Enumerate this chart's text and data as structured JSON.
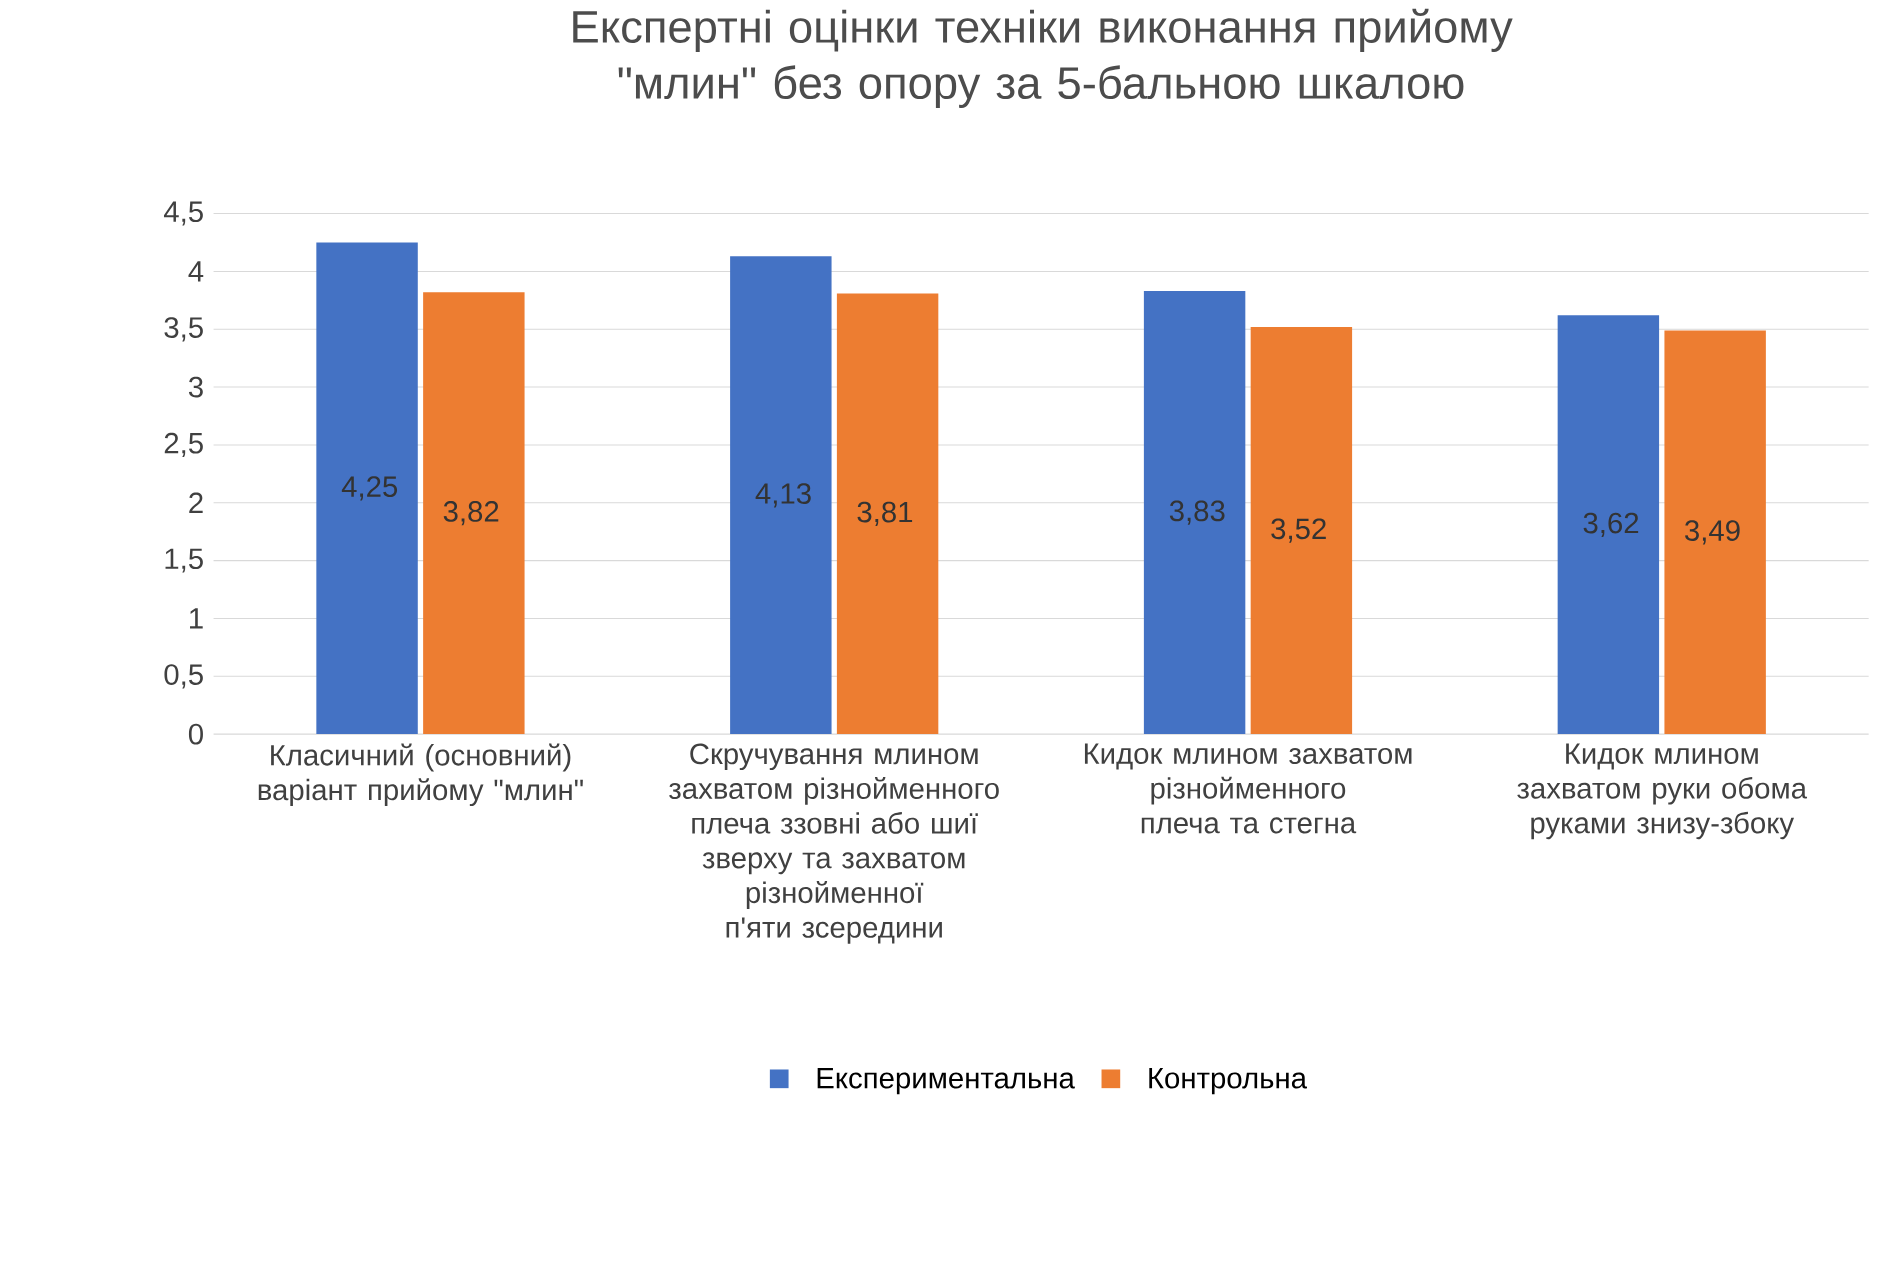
{
  "chart_data": {
    "type": "bar",
    "title": "Експертні оцінки техніки виконання прийому \"млин\" без опору за 5-бальною шкалою",
    "categories": [
      "Класичний (основний) варіант прийому \"млин\"",
      "Скручування млином захватом різнойменного плеча ззовні або шиї зверху та захватом різнойменної п'яти зсередини",
      "Кидок млином захватом різнойменного плеча та стегна",
      "Кидок млином захватом руки обома руками знизу-збоку"
    ],
    "series": [
      {
        "name": "Експериментальна",
        "color": "#4472c4",
        "values": [
          4.25,
          4.13,
          3.83,
          3.62
        ],
        "value_labels": [
          "4,25",
          "4,13",
          "3,83",
          "3,62"
        ]
      },
      {
        "name": "Контрольна",
        "color": "#ed7d31",
        "values": [
          3.82,
          3.81,
          3.52,
          3.49
        ],
        "value_labels": [
          "3,82",
          "3,81",
          "3,52",
          "3,49"
        ]
      }
    ],
    "ylim": [
      0,
      4.5
    ],
    "yticks": [
      {
        "value": 0,
        "label": "0"
      },
      {
        "value": 0.5,
        "label": "0,5"
      },
      {
        "value": 1,
        "label": "1"
      },
      {
        "value": 1.5,
        "label": "1,5"
      },
      {
        "value": 2,
        "label": "2"
      },
      {
        "value": 2.5,
        "label": "2,5"
      },
      {
        "value": 3,
        "label": "3"
      },
      {
        "value": 3.5,
        "label": "3,5"
      },
      {
        "value": 4,
        "label": "4"
      },
      {
        "value": 4.5,
        "label": "4,5"
      }
    ],
    "grid": "y",
    "legend": "bottom"
  }
}
